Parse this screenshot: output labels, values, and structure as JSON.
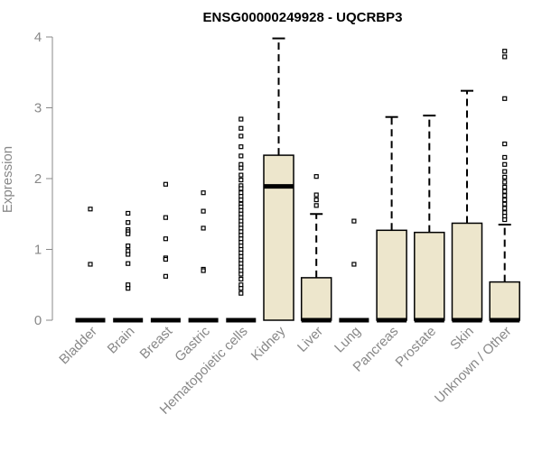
{
  "chart_data": {
    "type": "boxplot",
    "title": "ENSG00000249928 - UQCRBP3",
    "xlabel": "",
    "ylabel": "Expression",
    "ylim": [
      0,
      4
    ],
    "yticks": [
      0,
      1,
      2,
      3,
      4
    ],
    "categories": [
      "Bladder",
      "Brain",
      "Breast",
      "Gastric",
      "Hematopoietic cells",
      "Kidney",
      "Liver",
      "Lung",
      "Pancreas",
      "Prostate",
      "Skin",
      "Unknown / Other"
    ],
    "box_fill": "#ede6cc",
    "axis_color": "#888888",
    "boxes": [
      {
        "min": 0,
        "q1": 0,
        "median": 0,
        "q3": 0,
        "max": 0,
        "outliers": [
          1.57,
          0.79
        ]
      },
      {
        "min": 0,
        "q1": 0,
        "median": 0,
        "q3": 0,
        "max": 0,
        "outliers": [
          1.51,
          1.38,
          1.28,
          1.25,
          1.22,
          1.05,
          0.98,
          0.93,
          0.8,
          0.5,
          0.45
        ]
      },
      {
        "min": 0,
        "q1": 0,
        "median": 0,
        "q3": 0,
        "max": 0,
        "outliers": [
          1.92,
          1.45,
          1.15,
          0.88,
          0.86,
          0.62
        ]
      },
      {
        "min": 0,
        "q1": 0,
        "median": 0,
        "q3": 0,
        "max": 0,
        "outliers": [
          1.8,
          1.54,
          1.3,
          0.72,
          0.7
        ]
      },
      {
        "min": 0,
        "q1": 0,
        "median": 0,
        "q3": 0,
        "max": 0,
        "outliers": [
          2.84,
          2.71,
          2.6,
          2.45,
          2.32,
          2.2,
          2.15,
          2.05,
          1.98,
          1.9,
          1.86,
          1.8,
          1.75,
          1.7,
          1.64,
          1.6,
          1.55,
          1.5,
          1.45,
          1.4,
          1.35,
          1.3,
          1.25,
          1.2,
          1.15,
          1.1,
          1.05,
          1.0,
          0.95,
          0.9,
          0.85,
          0.8,
          0.75,
          0.7,
          0.65,
          0.58,
          0.5,
          0.45,
          0.38
        ]
      },
      {
        "min": 0,
        "q1": 0,
        "median": 1.89,
        "q3": 2.33,
        "max": 3.98,
        "outliers": []
      },
      {
        "min": 0,
        "q1": 0,
        "median": 0,
        "q3": 0.6,
        "max": 1.5,
        "outliers": [
          2.03,
          1.77,
          1.7,
          1.62
        ]
      },
      {
        "min": 0,
        "q1": 0,
        "median": 0,
        "q3": 0,
        "max": 0,
        "outliers": [
          1.4,
          0.79
        ]
      },
      {
        "min": 0,
        "q1": 0,
        "median": 0,
        "q3": 1.27,
        "max": 2.87,
        "outliers": []
      },
      {
        "min": 0,
        "q1": 0,
        "median": 0,
        "q3": 1.24,
        "max": 2.89,
        "outliers": []
      },
      {
        "min": 0,
        "q1": 0,
        "median": 0,
        "q3": 1.37,
        "max": 3.24,
        "outliers": []
      },
      {
        "min": 0,
        "q1": 0,
        "median": 0,
        "q3": 0.54,
        "max": 1.35,
        "outliers": [
          3.8,
          3.72,
          3.13,
          2.49,
          2.3,
          2.2,
          2.1,
          2.02,
          1.95,
          1.88,
          1.82,
          1.76,
          1.7,
          1.64,
          1.58,
          1.52,
          1.47,
          1.42
        ]
      }
    ]
  }
}
